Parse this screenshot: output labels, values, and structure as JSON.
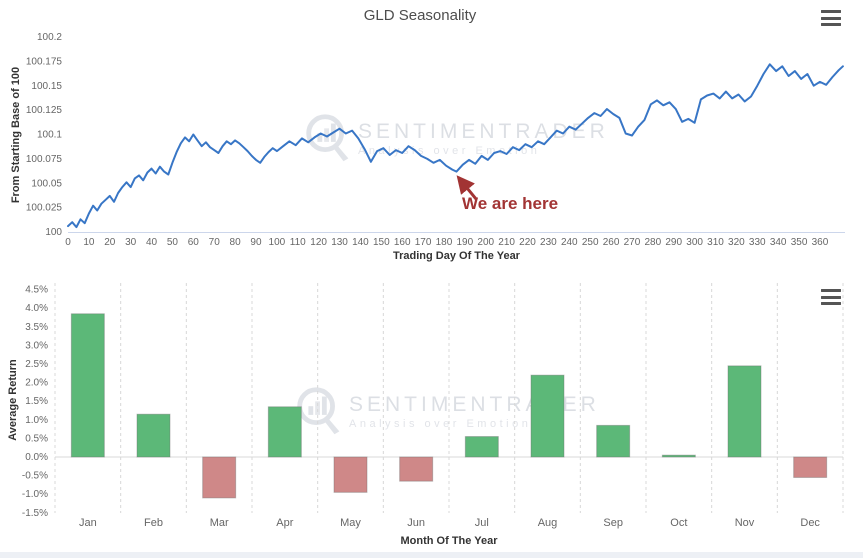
{
  "watermark": {
    "brand": "SENTIMENTRADER",
    "tagline": "Analysis over Emotion"
  },
  "top_chart": {
    "title": "GLD Seasonality",
    "menu_icon": "hamburger-menu-icon",
    "y_axis": {
      "title": "From Starting Base of 100"
    },
    "x_axis": {
      "title": "Trading Day Of The Year"
    },
    "annotation": {
      "text": "We are here",
      "color": "#a23434",
      "points_to_day": 186,
      "points_to_value": 100.062
    }
  },
  "bottom_chart": {
    "menu_icon": "hamburger-menu-icon",
    "y_axis": {
      "title": "Average Return"
    },
    "x_axis": {
      "title": "Month Of The Year"
    }
  },
  "chart_data": [
    {
      "type": "line",
      "title": "GLD Seasonality",
      "xlabel": "Trading Day Of The Year",
      "ylabel": "From Starting Base of 100",
      "xlim": [
        0,
        372
      ],
      "ylim": [
        100,
        100.2
      ],
      "grid": "off",
      "x_ticks": [
        0,
        10,
        20,
        30,
        40,
        50,
        60,
        70,
        80,
        90,
        100,
        110,
        120,
        130,
        140,
        150,
        160,
        170,
        180,
        190,
        200,
        210,
        220,
        230,
        240,
        250,
        260,
        270,
        280,
        290,
        300,
        310,
        320,
        330,
        340,
        350,
        360
      ],
      "y_ticks": [
        {
          "value": 100.2,
          "label": "100.2"
        },
        {
          "value": 100.175,
          "label": "100.175"
        },
        {
          "value": 100.15,
          "label": "100.15"
        },
        {
          "value": 100.125,
          "label": "100.125"
        },
        {
          "value": 100.1,
          "label": "100.1"
        },
        {
          "value": 100.075,
          "label": "100.075"
        },
        {
          "value": 100.05,
          "label": "100.05"
        },
        {
          "value": 100.025,
          "label": "100.025"
        },
        {
          "value": 100,
          "label": "100"
        }
      ],
      "annotation": {
        "text": "We are here",
        "x": 186,
        "y": 100.062
      },
      "series": [
        {
          "name": "GLD seasonality",
          "color": "#3876c6",
          "x": [
            0,
            2,
            4,
            6,
            8,
            10,
            12,
            14,
            16,
            18,
            20,
            22,
            24,
            26,
            28,
            30,
            32,
            34,
            36,
            38,
            40,
            42,
            44,
            46,
            48,
            50,
            52,
            54,
            56,
            58,
            60,
            62,
            64,
            66,
            68,
            70,
            72,
            74,
            76,
            78,
            80,
            82,
            84,
            86,
            88,
            90,
            92,
            94,
            96,
            98,
            100,
            103,
            106,
            109,
            112,
            115,
            118,
            121,
            124,
            127,
            130,
            133,
            136,
            139,
            142,
            145,
            148,
            151,
            154,
            157,
            160,
            163,
            166,
            169,
            172,
            175,
            178,
            181,
            184,
            186,
            189,
            192,
            195,
            198,
            201,
            204,
            207,
            210,
            213,
            216,
            219,
            222,
            225,
            228,
            231,
            234,
            237,
            240,
            243,
            246,
            249,
            252,
            255,
            258,
            261,
            264,
            267,
            270,
            273,
            276,
            279,
            282,
            285,
            288,
            291,
            294,
            297,
            300,
            303,
            306,
            309,
            312,
            315,
            318,
            321,
            324,
            327,
            330,
            333,
            336,
            339,
            342,
            345,
            348,
            351,
            354,
            357,
            360,
            363,
            366,
            369,
            371
          ],
          "y": [
            100.006,
            100.01,
            100.005,
            100.013,
            100.009,
            100.019,
            100.027,
            100.022,
            100.029,
            100.033,
            100.037,
            100.031,
            100.04,
            100.046,
            100.051,
            100.046,
            100.055,
            100.058,
            100.053,
            100.061,
            100.065,
            100.06,
            100.067,
            100.062,
            100.059,
            100.071,
            100.082,
            100.091,
            100.097,
            100.093,
            100.1,
            100.094,
            100.088,
            100.092,
            100.087,
            100.084,
            100.081,
            100.088,
            100.093,
            100.09,
            100.094,
            100.091,
            100.087,
            100.083,
            100.078,
            100.074,
            100.071,
            100.077,
            100.082,
            100.086,
            100.083,
            100.088,
            100.093,
            100.089,
            100.096,
            100.092,
            100.097,
            100.101,
            100.098,
            100.102,
            100.106,
            100.101,
            100.104,
            100.096,
            100.085,
            100.072,
            100.083,
            100.086,
            100.079,
            100.084,
            100.081,
            100.088,
            100.084,
            100.078,
            100.075,
            100.071,
            100.074,
            100.068,
            100.064,
            100.062,
            100.069,
            100.074,
            100.07,
            100.078,
            100.074,
            100.081,
            100.083,
            100.08,
            100.087,
            100.084,
            100.09,
            100.087,
            100.093,
            100.09,
            100.097,
            100.104,
            100.101,
            100.108,
            100.105,
            100.111,
            100.117,
            100.122,
            100.119,
            100.126,
            100.121,
            100.117,
            100.101,
            100.099,
            100.108,
            100.115,
            100.131,
            100.135,
            100.13,
            100.133,
            100.126,
            100.113,
            100.116,
            100.112,
            100.136,
            100.14,
            100.142,
            100.137,
            100.144,
            100.137,
            100.141,
            100.134,
            100.139,
            100.15,
            100.162,
            100.172,
            100.165,
            100.17,
            100.16,
            100.165,
            100.157,
            100.162,
            100.15,
            100.154,
            100.151,
            100.159,
            100.166,
            100.17
          ]
        }
      ]
    },
    {
      "type": "bar",
      "categories": [
        "Jan",
        "Feb",
        "Mar",
        "Apr",
        "May",
        "Jun",
        "Jul",
        "Aug",
        "Sep",
        "Oct",
        "Nov",
        "Dec"
      ],
      "values": [
        3.85,
        1.15,
        -1.1,
        1.35,
        -0.95,
        -0.65,
        0.55,
        2.2,
        0.85,
        0.05,
        2.45,
        -0.55
      ],
      "xlabel": "Month Of The Year",
      "ylabel": "Average Return",
      "ylim": [
        -1.5,
        4.5
      ],
      "grid": "dashed-vertical",
      "positive_color": "#5cb878",
      "negative_color": "#cf8888",
      "y_ticks": [
        {
          "value": 4.5,
          "label": "4.5%"
        },
        {
          "value": 4.0,
          "label": "4.0%"
        },
        {
          "value": 3.5,
          "label": "3.5%"
        },
        {
          "value": 3.0,
          "label": "3.0%"
        },
        {
          "value": 2.5,
          "label": "2.5%"
        },
        {
          "value": 2.0,
          "label": "2.0%"
        },
        {
          "value": 1.5,
          "label": "1.5%"
        },
        {
          "value": 1.0,
          "label": "1.0%"
        },
        {
          "value": 0.5,
          "label": "0.5%"
        },
        {
          "value": 0.0,
          "label": "0.0%"
        },
        {
          "value": -0.5,
          "label": "-0.5%"
        },
        {
          "value": -1.0,
          "label": "-1.0%"
        },
        {
          "value": -1.5,
          "label": "-1.5%"
        }
      ]
    }
  ]
}
